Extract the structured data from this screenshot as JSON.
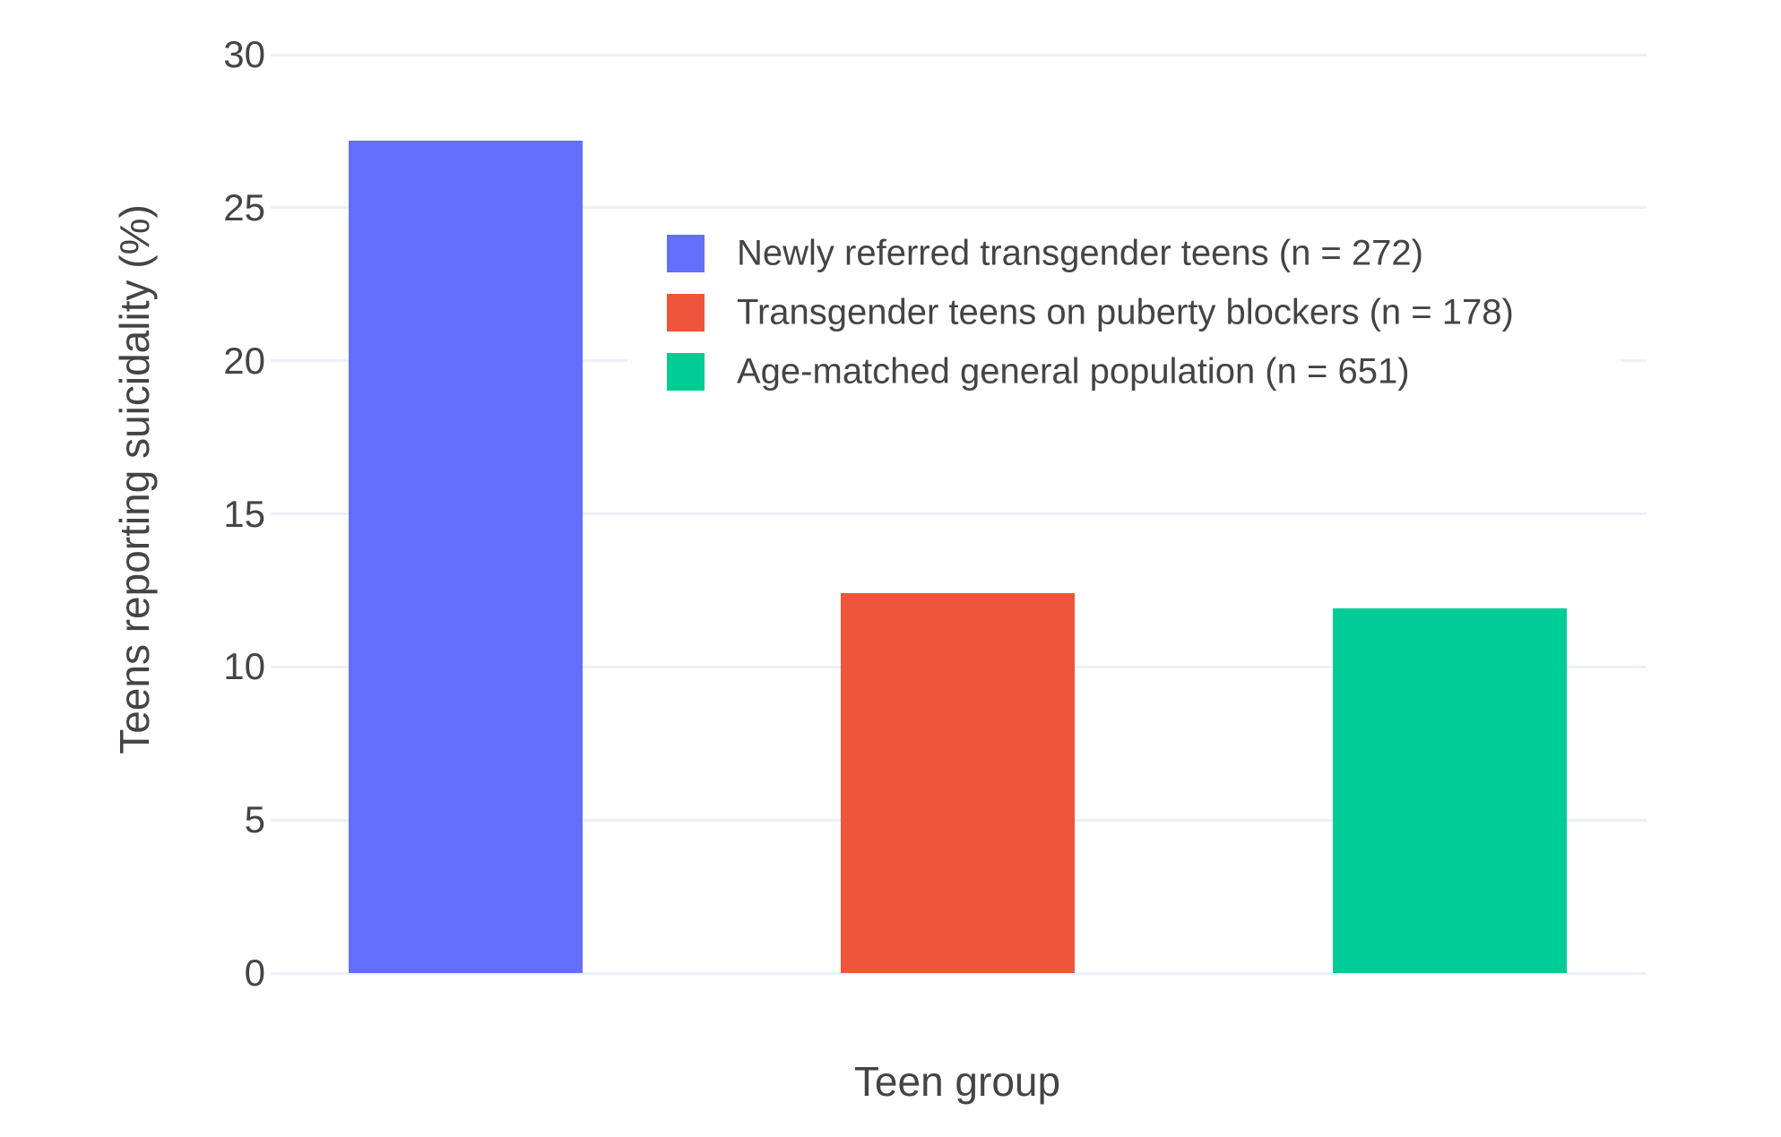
{
  "colors": {
    "text": "#444444",
    "grid": "#EBF0F8",
    "background": "#FFFFFF"
  },
  "chart_data": {
    "type": "bar",
    "title": "",
    "xlabel": "Teen group",
    "ylabel": "Teens reporting suicidality (%)",
    "ylim": [
      0,
      30
    ],
    "yticks": [
      0,
      5,
      10,
      15,
      20,
      25,
      30
    ],
    "grid": true,
    "legend_position": "inside-top-right",
    "series": [
      {
        "name": "Newly referred transgender teens (n = 272)",
        "value": 27.2,
        "color": "#636EFA"
      },
      {
        "name": "Transgender teens on puberty blockers (n = 178)",
        "value": 12.4,
        "color": "#EF553B"
      },
      {
        "name": "Age-matched general population (n = 651)",
        "value": 11.9,
        "color": "#00CC96"
      }
    ]
  }
}
